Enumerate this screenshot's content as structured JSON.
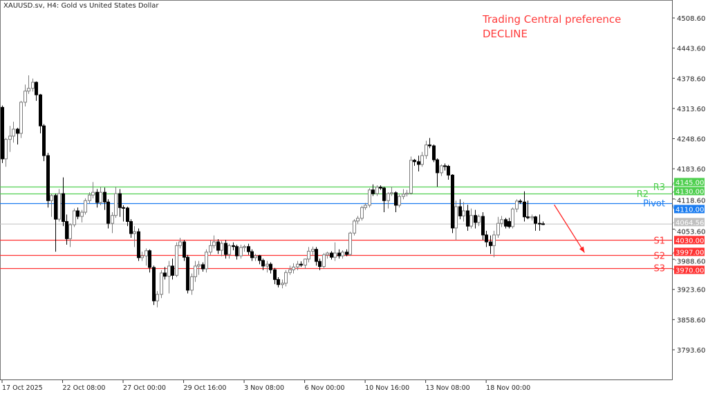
{
  "header": {
    "title": "XAUUSD.sv, H4:  Gold vs United States Dollar"
  },
  "annotation": {
    "line1": "Trading Central preference",
    "line2": "DECLINE",
    "color": "#ff3b3b"
  },
  "chart_data": {
    "type": "candlestick",
    "symbol": "XAUUSD.sv",
    "timeframe": "H4",
    "ylim": [
      3735,
      4545
    ],
    "y_ticks": [
      "4508.60",
      "4443.60",
      "4378.60",
      "4313.60",
      "4248.60",
      "4183.60",
      "4118.60",
      "4053.60",
      "3988.60",
      "3923.60",
      "3858.60",
      "3793.60"
    ],
    "x_ticks": [
      {
        "label": "17 Oct 2025",
        "bar": 0
      },
      {
        "label": "22 Oct 08:00",
        "bar": 16
      },
      {
        "label": "27 Oct 00:00",
        "bar": 32
      },
      {
        "label": "29 Oct 16:00",
        "bar": 48
      },
      {
        "label": "3 Nov 08:00",
        "bar": 64
      },
      {
        "label": "6 Nov 00:00",
        "bar": 80
      },
      {
        "label": "10 Nov 16:00",
        "bar": 96
      },
      {
        "label": "13 Nov 08:00",
        "bar": 112
      },
      {
        "label": "18 Nov 00:00",
        "bar": 128
      }
    ],
    "ohlc": [
      [
        4316,
        4320,
        4196,
        4205
      ],
      [
        4205,
        4250,
        4188,
        4247
      ],
      [
        4247,
        4276,
        4220,
        4254
      ],
      [
        4254,
        4285,
        4240,
        4269
      ],
      [
        4269,
        4272,
        4236,
        4260
      ],
      [
        4260,
        4330,
        4250,
        4327
      ],
      [
        4327,
        4365,
        4318,
        4351
      ],
      [
        4351,
        4385,
        4345,
        4357
      ],
      [
        4357,
        4378,
        4350,
        4370
      ],
      [
        4370,
        4372,
        4330,
        4343
      ],
      [
        4343,
        4345,
        4260,
        4276
      ],
      [
        4276,
        4280,
        4200,
        4212
      ],
      [
        4212,
        4218,
        4100,
        4115
      ],
      [
        4115,
        4130,
        4080,
        4126
      ],
      [
        4126,
        4130,
        4005,
        4075
      ],
      [
        4075,
        4140,
        4070,
        4130
      ],
      [
        4130,
        4165,
        4060,
        4070
      ],
      [
        4070,
        4085,
        4020,
        4033
      ],
      [
        4033,
        4066,
        4015,
        4063
      ],
      [
        4063,
        4098,
        4058,
        4093
      ],
      [
        4093,
        4100,
        4075,
        4081
      ],
      [
        4081,
        4095,
        4068,
        4090
      ],
      [
        4090,
        4120,
        4085,
        4115
      ],
      [
        4115,
        4133,
        4108,
        4127
      ],
      [
        4127,
        4155,
        4120,
        4133
      ],
      [
        4133,
        4140,
        4100,
        4111
      ],
      [
        4111,
        4145,
        4105,
        4133
      ],
      [
        4133,
        4143,
        4095,
        4112
      ],
      [
        4112,
        4118,
        4055,
        4066
      ],
      [
        4066,
        4090,
        4045,
        4083
      ],
      [
        4083,
        4145,
        4078,
        4130
      ],
      [
        4130,
        4140,
        4080,
        4100
      ],
      [
        4100,
        4105,
        4070,
        4099
      ],
      [
        4099,
        4102,
        4060,
        4070
      ],
      [
        4070,
        4075,
        4035,
        4044
      ],
      [
        4044,
        4060,
        4015,
        4048
      ],
      [
        4048,
        4055,
        3985,
        3992
      ],
      [
        3992,
        4005,
        3985,
        3996
      ],
      [
        3996,
        4012,
        3975,
        4007
      ],
      [
        4007,
        4010,
        3960,
        3971
      ],
      [
        3971,
        3975,
        3890,
        3899
      ],
      [
        3899,
        3920,
        3885,
        3913
      ],
      [
        3913,
        3965,
        3905,
        3959
      ],
      [
        3959,
        3972,
        3945,
        3952
      ],
      [
        3952,
        3985,
        3915,
        3974
      ],
      [
        3974,
        3990,
        3945,
        3954
      ],
      [
        3954,
        4025,
        3950,
        4018
      ],
      [
        4018,
        4035,
        4012,
        4026
      ],
      [
        4026,
        4030,
        3985,
        3993
      ],
      [
        3993,
        3998,
        3915,
        3922
      ],
      [
        3922,
        3958,
        3912,
        3951
      ],
      [
        3951,
        3985,
        3940,
        3974
      ],
      [
        3974,
        3985,
        3955,
        3977
      ],
      [
        3977,
        3982,
        3962,
        3968
      ],
      [
        3968,
        4010,
        3960,
        4004
      ],
      [
        4004,
        4030,
        3998,
        4018
      ],
      [
        4018,
        4040,
        4012,
        4026
      ],
      [
        4026,
        4032,
        4000,
        4008
      ],
      [
        4008,
        4028,
        3995,
        4023
      ],
      [
        4023,
        4030,
        3990,
        3999
      ],
      [
        3999,
        4022,
        3990,
        4018
      ],
      [
        4018,
        4025,
        4008,
        4016
      ],
      [
        4016,
        4020,
        3988,
        3996
      ],
      [
        3996,
        4020,
        3990,
        4014
      ],
      [
        4014,
        4020,
        4005,
        4016
      ],
      [
        4016,
        4022,
        3998,
        4005
      ],
      [
        4005,
        4010,
        3985,
        3992
      ],
      [
        3992,
        4000,
        3985,
        3996
      ],
      [
        3996,
        3998,
        3978,
        3986
      ],
      [
        3986,
        3990,
        3965,
        3974
      ],
      [
        3974,
        3985,
        3960,
        3978
      ],
      [
        3978,
        3982,
        3958,
        3966
      ],
      [
        3966,
        3970,
        3935,
        3945
      ],
      [
        3945,
        3950,
        3928,
        3934
      ],
      [
        3934,
        3945,
        3926,
        3937
      ],
      [
        3937,
        3965,
        3930,
        3960
      ],
      [
        3960,
        3975,
        3955,
        3966
      ],
      [
        3966,
        3980,
        3958,
        3972
      ],
      [
        3972,
        3985,
        3965,
        3978
      ],
      [
        3978,
        3984,
        3972,
        3976
      ],
      [
        3976,
        3990,
        3968,
        3989
      ],
      [
        3989,
        4015,
        3982,
        4006
      ],
      [
        4006,
        4016,
        3998,
        4010
      ],
      [
        4010,
        4015,
        3975,
        3984
      ],
      [
        3984,
        3990,
        3965,
        3973
      ],
      [
        3973,
        4002,
        3968,
        3998
      ],
      [
        3998,
        4005,
        3990,
        4002
      ],
      [
        4002,
        4006,
        3988,
        3993
      ],
      [
        3993,
        4025,
        3985,
        4002
      ],
      [
        4002,
        4010,
        3990,
        3996
      ],
      [
        3996,
        4008,
        3990,
        4004
      ],
      [
        4004,
        4010,
        3995,
        3999
      ],
      [
        3999,
        4048,
        3996,
        4045
      ],
      [
        4045,
        4075,
        4040,
        4071
      ],
      [
        4071,
        4082,
        4065,
        4077
      ],
      [
        4077,
        4104,
        4072,
        4100
      ],
      [
        4100,
        4110,
        4095,
        4105
      ],
      [
        4105,
        4142,
        4100,
        4138
      ],
      [
        4138,
        4150,
        4125,
        4130
      ],
      [
        4130,
        4148,
        4125,
        4144
      ],
      [
        4144,
        4148,
        4138,
        4142
      ],
      [
        4142,
        4145,
        4090,
        4115
      ],
      [
        4115,
        4133,
        4098,
        4130
      ],
      [
        4130,
        4145,
        4125,
        4132
      ],
      [
        4132,
        4135,
        4090,
        4105
      ],
      [
        4105,
        4128,
        4100,
        4124
      ],
      [
        4124,
        4140,
        4118,
        4129
      ],
      [
        4129,
        4138,
        4124,
        4131
      ],
      [
        4131,
        4210,
        4128,
        4202
      ],
      [
        4202,
        4205,
        4190,
        4199
      ],
      [
        4199,
        4212,
        4178,
        4193
      ],
      [
        4193,
        4220,
        4188,
        4212
      ],
      [
        4212,
        4244,
        4205,
        4235
      ],
      [
        4235,
        4250,
        4228,
        4233
      ],
      [
        4233,
        4236,
        4198,
        4203
      ],
      [
        4203,
        4206,
        4145,
        4175
      ],
      [
        4175,
        4193,
        4168,
        4190
      ],
      [
        4190,
        4195,
        4180,
        4189
      ],
      [
        4189,
        4192,
        4160,
        4170
      ],
      [
        4170,
        4172,
        4045,
        4056
      ],
      [
        4056,
        4115,
        4030,
        4102
      ],
      [
        4102,
        4118,
        4075,
        4082
      ],
      [
        4082,
        4112,
        4070,
        4093
      ],
      [
        4093,
        4106,
        4050,
        4060
      ],
      [
        4060,
        4098,
        4055,
        4083
      ],
      [
        4083,
        4095,
        4055,
        4068
      ],
      [
        4068,
        4085,
        4060,
        4081
      ],
      [
        4081,
        4090,
        4030,
        4041
      ],
      [
        4041,
        4050,
        4015,
        4026
      ],
      [
        4026,
        4040,
        4000,
        4018
      ],
      [
        4018,
        4050,
        3993,
        4041
      ],
      [
        4041,
        4080,
        4035,
        4066
      ],
      [
        4066,
        4082,
        4058,
        4074
      ],
      [
        4074,
        4078,
        4055,
        4060
      ],
      [
        4070,
        4078,
        4055,
        4059
      ],
      [
        4059,
        4100,
        4055,
        4097
      ],
      [
        4097,
        4118,
        4090,
        4114
      ],
      [
        4114,
        4118,
        4108,
        4112
      ],
      [
        4112,
        4135,
        4070,
        4080
      ],
      [
        4080,
        4115,
        4075,
        4078
      ],
      [
        4078,
        4085,
        4072,
        4080
      ],
      [
        4080,
        4082,
        4050,
        4066
      ],
      [
        4066,
        4085,
        4050,
        4065
      ],
      [
        4065,
        4070,
        4062,
        4064.56
      ]
    ],
    "current_price": {
      "value": 4064.56,
      "label": "4064.56",
      "color": "#c0c0c0"
    },
    "levels": [
      {
        "name": "R3",
        "value": 4145.0,
        "label": "4145.00",
        "color": "#4fcf4f"
      },
      {
        "name": "R2",
        "value": 4130.0,
        "label": "4130.00",
        "color": "#4fcf4f"
      },
      {
        "name": "Pivot",
        "value": 4110.0,
        "label": "4110.00",
        "color": "#1a7cf0"
      },
      {
        "name": "S1",
        "value": 4030.0,
        "label": "4030.00",
        "color": "#ff3333"
      },
      {
        "name": "S2",
        "value": 3997.0,
        "label": "3997.00",
        "color": "#ff3333"
      },
      {
        "name": "S3",
        "value": 3970.0,
        "label": "3970.00",
        "color": "#ff3333"
      }
    ],
    "arrow": {
      "direction": "down",
      "from": {
        "bar": 146,
        "price": 4106
      },
      "to": {
        "bar": 154,
        "price": 4003
      },
      "color": "#ff2222"
    },
    "colors": {
      "bull_fill": "#ffffff",
      "bull_stroke": "#7a7a7a",
      "bear": "#000000"
    }
  }
}
